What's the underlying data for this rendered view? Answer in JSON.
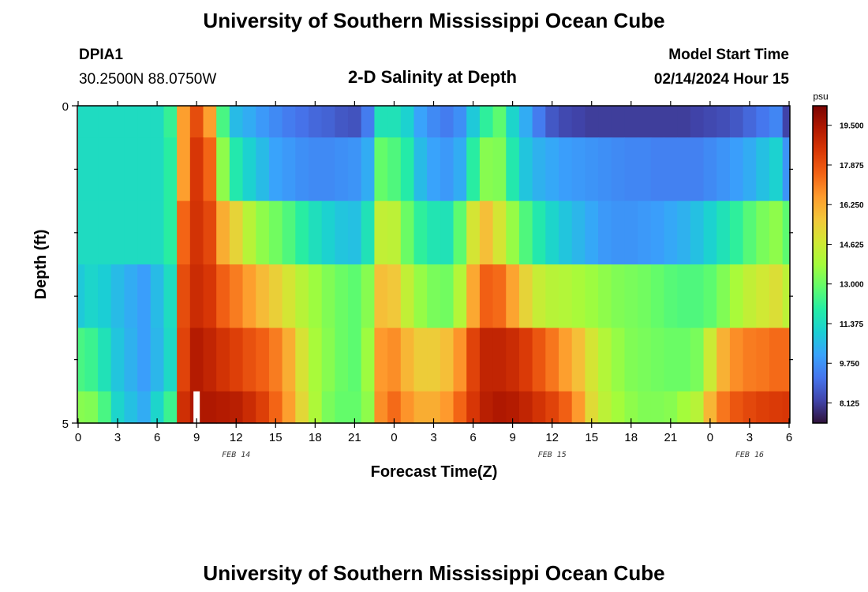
{
  "page": {
    "title": "University of Southern Mississippi Ocean Cube",
    "footer_title": "University of Southern Mississippi Ocean Cube"
  },
  "header": {
    "station": "DPIA1",
    "coords": "30.2500N  88.0750W",
    "chart_title": "2-D Salinity at Depth",
    "model_label": "Model Start Time",
    "model_time": "02/14/2024 Hour 15"
  },
  "chart_data": {
    "type": "heatmap",
    "title": "2-D Salinity at Depth",
    "xlabel": "Forecast Time(Z)",
    "ylabel": "Depth (ft)",
    "x_hours": [
      0,
      1,
      2,
      3,
      4,
      5,
      6,
      7,
      8,
      9,
      10,
      11,
      12,
      13,
      14,
      15,
      16,
      17,
      18,
      19,
      20,
      21,
      22,
      23,
      24,
      25,
      26,
      27,
      28,
      29,
      30,
      31,
      32,
      33,
      34,
      35,
      36,
      37,
      38,
      39,
      40,
      41,
      42,
      43,
      44,
      45,
      46,
      47,
      48,
      49,
      50,
      51,
      52,
      53,
      54
    ],
    "xlim": [
      0,
      54
    ],
    "x_tick_labels": [
      "0",
      "3",
      "6",
      "9",
      "12",
      "15",
      "18",
      "21",
      "0",
      "3",
      "6",
      "9",
      "12",
      "15",
      "18",
      "21",
      "0",
      "3",
      "6"
    ],
    "date_labels": [
      {
        "text": "FEB 14",
        "hour": 12
      },
      {
        "text": "FEB 15",
        "hour": 36
      },
      {
        "text": "FEB 16",
        "hour": 51
      }
    ],
    "depth_layers_ft": [
      [
        0,
        0.5
      ],
      [
        0.5,
        1.5
      ],
      [
        1.5,
        2.5
      ],
      [
        2.5,
        3.5
      ],
      [
        3.5,
        4.5
      ],
      [
        4.5,
        5.0
      ]
    ],
    "ylim": [
      0,
      5
    ],
    "y_tick_labels": [
      "0",
      "5"
    ],
    "y_minor_ticks": [
      1,
      2,
      3,
      4
    ],
    "values": [
      [
        11.4,
        11.4,
        11.4,
        11.4,
        11.4,
        11.4,
        11.4,
        12.2,
        16.5,
        18.0,
        16.5,
        12.5,
        10.6,
        10.3,
        9.9,
        9.6,
        9.3,
        9.1,
        8.9,
        8.8,
        8.6,
        8.5,
        9.3,
        11.6,
        11.6,
        11.1,
        10.1,
        9.6,
        9.3,
        9.7,
        10.9,
        12.1,
        12.8,
        11.2,
        10.3,
        9.3,
        8.6,
        8.3,
        8.2,
        8.1,
        8.1,
        8.1,
        8.1,
        8.1,
        8.1,
        8.1,
        8.1,
        8.2,
        8.3,
        8.4,
        8.6,
        8.9,
        9.2,
        9.5,
        8.2
      ],
      [
        11.4,
        11.4,
        11.4,
        11.4,
        11.4,
        11.4,
        11.4,
        12.0,
        16.5,
        18.5,
        17.5,
        13.5,
        11.8,
        11.1,
        10.6,
        10.1,
        9.9,
        9.7,
        9.6,
        9.6,
        9.7,
        9.8,
        10.3,
        12.9,
        12.6,
        11.9,
        10.6,
        10.1,
        9.9,
        10.3,
        12.0,
        13.4,
        13.3,
        11.8,
        10.8,
        10.4,
        10.2,
        10.0,
        9.9,
        9.8,
        9.7,
        9.6,
        9.5,
        9.5,
        9.4,
        9.4,
        9.4,
        9.4,
        9.6,
        9.8,
        10.0,
        10.3,
        10.7,
        11.1,
        9.8
      ],
      [
        11.4,
        11.4,
        11.4,
        11.4,
        11.4,
        11.4,
        11.4,
        12.0,
        17.5,
        18.6,
        18.1,
        16.2,
        15.3,
        14.2,
        13.5,
        13.1,
        12.6,
        12.0,
        11.5,
        11.1,
        10.8,
        10.7,
        11.6,
        14.4,
        14.3,
        13.0,
        12.1,
        11.7,
        11.6,
        12.8,
        14.8,
        15.8,
        14.8,
        13.6,
        12.6,
        11.8,
        11.2,
        10.8,
        10.5,
        10.2,
        9.9,
        9.8,
        9.8,
        9.9,
        10.0,
        10.2,
        10.4,
        10.7,
        11.1,
        11.6,
        12.1,
        12.7,
        13.2,
        13.5,
        12.8
      ],
      [
        10.9,
        11.2,
        11.0,
        10.6,
        10.3,
        10.0,
        10.6,
        11.4,
        18.0,
        18.8,
        18.5,
        17.6,
        17.1,
        16.5,
        15.9,
        15.4,
        14.8,
        14.2,
        13.7,
        13.3,
        13.0,
        12.8,
        13.4,
        15.8,
        15.6,
        14.4,
        13.6,
        13.2,
        13.1,
        14.1,
        16.3,
        17.6,
        17.4,
        16.4,
        15.3,
        14.5,
        14.2,
        14.1,
        13.9,
        13.7,
        13.5,
        13.3,
        13.2,
        13.1,
        12.9,
        12.7,
        12.6,
        12.6,
        12.8,
        13.3,
        13.9,
        14.4,
        14.7,
        15.0,
        14.3
      ],
      [
        12.5,
        12.3,
        11.6,
        10.8,
        10.4,
        10.0,
        10.5,
        11.3,
        18.2,
        19.3,
        19.0,
        18.6,
        18.3,
        17.9,
        17.6,
        17.1,
        16.2,
        14.9,
        13.9,
        13.4,
        13.0,
        12.8,
        13.7,
        16.6,
        16.8,
        16.0,
        15.5,
        15.5,
        15.8,
        16.7,
        18.2,
        19.0,
        19.0,
        18.8,
        18.4,
        17.8,
        17.2,
        16.5,
        15.8,
        14.8,
        14.1,
        13.6,
        13.3,
        13.2,
        13.1,
        13.0,
        13.0,
        13.2,
        14.6,
        16.1,
        16.8,
        17.1,
        17.2,
        17.4,
        17.4
      ],
      [
        13.4,
        13.3,
        12.5,
        11.2,
        10.7,
        10.3,
        11.2,
        12.3,
        18.7,
        19.4,
        19.4,
        19.3,
        19.2,
        18.8,
        18.3,
        17.5,
        16.5,
        15.2,
        14.0,
        13.2,
        12.9,
        12.9,
        13.5,
        16.8,
        17.4,
        16.7,
        16.2,
        16.2,
        16.6,
        17.5,
        18.5,
        19.2,
        19.4,
        19.3,
        19.0,
        18.6,
        18.2,
        17.6,
        16.6,
        15.1,
        14.3,
        13.8,
        13.5,
        13.3,
        13.3,
        13.4,
        13.8,
        14.2,
        16.0,
        17.2,
        17.8,
        18.1,
        18.3,
        18.4,
        18.5
      ]
    ],
    "vmin": 7.3,
    "vmax": 20.3,
    "colorbar": {
      "unit": "psu",
      "tick_values": [
        19.5,
        17.875,
        16.25,
        14.625,
        13.0,
        11.375,
        9.75,
        8.125
      ],
      "tick_labels": [
        "19.500",
        "17.875",
        "16.250",
        "14.625",
        "13.000",
        "11.375",
        "9.750",
        "8.125"
      ]
    },
    "marker": {
      "hour": 9,
      "depth_ft": [
        4.5,
        5.0
      ],
      "color": "#ffffff"
    },
    "colormap": [
      "#30123b",
      "#4145ab",
      "#4675ed",
      "#39a2fc",
      "#1bcfd4",
      "#24eca6",
      "#61fc6c",
      "#a4fc3b",
      "#d1e834",
      "#f3c63a",
      "#fe9b2d",
      "#f36315",
      "#d93806",
      "#b11901",
      "#7a0403"
    ]
  }
}
